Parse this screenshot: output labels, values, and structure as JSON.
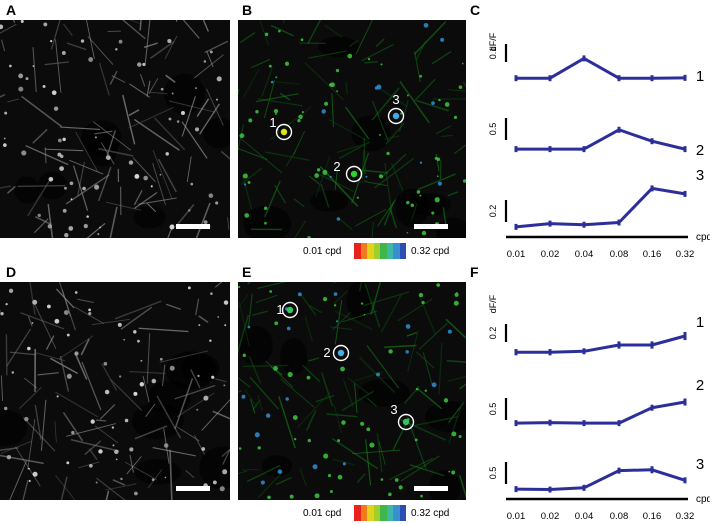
{
  "panels": {
    "A": "A",
    "B": "B",
    "C": "C",
    "D": "D",
    "E": "E",
    "F": "F"
  },
  "colorbar": {
    "min_label": "0.01 cpd",
    "max_label": "0.32 cpd",
    "colors": [
      "#e8231c",
      "#f07a1e",
      "#e3d21c",
      "#9fcf2b",
      "#3fb54a",
      "#3bb8a8",
      "#3a8fd0",
      "#2a4fb0"
    ]
  },
  "rois_top": [
    {
      "label": "1",
      "color": "#e0e020"
    },
    {
      "label": "2",
      "color": "#30d030"
    },
    {
      "label": "3",
      "color": "#40a8e8"
    }
  ],
  "rois_bottom": [
    {
      "label": "1",
      "color": "#30c860"
    },
    {
      "label": "2",
      "color": "#40b0e8"
    },
    {
      "label": "3",
      "color": "#38c060"
    }
  ],
  "chart_data": [
    {
      "type": "line",
      "panel": "C",
      "ylabel": "dF/F",
      "xlabel": "cpd",
      "x_tick_labels": [
        "0.01",
        "0.02",
        "0.04",
        "0.08",
        "0.16",
        "0.32"
      ],
      "line_color": "#2c2f9a",
      "series": [
        {
          "name": "1",
          "scale_label": "0.1",
          "values": [
            0.01,
            0.01,
            0.12,
            0.01,
            0.01,
            0.012
          ],
          "errors": [
            0.003,
            0.003,
            0.01,
            0.003,
            0.003,
            0.003
          ]
        },
        {
          "name": "2",
          "scale_label": "0.5",
          "values": [
            0.02,
            0.02,
            0.02,
            0.46,
            0.2,
            0.02
          ],
          "errors": [
            0.01,
            0.01,
            0.01,
            0.04,
            0.04,
            0.01
          ]
        },
        {
          "name": "3",
          "scale_label": "0.2",
          "values": [
            0.01,
            0.04,
            0.03,
            0.05,
            0.36,
            0.31
          ],
          "errors": [
            0.01,
            0.01,
            0.01,
            0.01,
            0.02,
            0.02
          ]
        }
      ]
    },
    {
      "type": "line",
      "panel": "F",
      "ylabel": "dF/F",
      "xlabel": "cpd",
      "x_tick_labels": [
        "0.01",
        "0.02",
        "0.04",
        "0.08",
        "0.16",
        "0.32"
      ],
      "line_color": "#2c2f9a",
      "series": [
        {
          "name": "1",
          "scale_label": "0.2",
          "values": [
            0.02,
            0.02,
            0.03,
            0.1,
            0.1,
            0.2
          ],
          "errors": [
            0.035,
            0.035,
            0.02,
            0.04,
            0.04,
            0.045
          ]
        },
        {
          "name": "2",
          "scale_label": "0.5",
          "values": [
            0.02,
            0.03,
            0.02,
            0.02,
            0.37,
            0.5
          ],
          "errors": [
            0.01,
            0.01,
            0.01,
            0.01,
            0.06,
            0.08
          ]
        },
        {
          "name": "3",
          "scale_label": "0.5",
          "values": [
            0.02,
            0.01,
            0.05,
            0.44,
            0.46,
            0.22
          ],
          "errors": [
            0.01,
            0.01,
            0.01,
            0.04,
            0.08,
            0.04
          ]
        }
      ]
    }
  ]
}
